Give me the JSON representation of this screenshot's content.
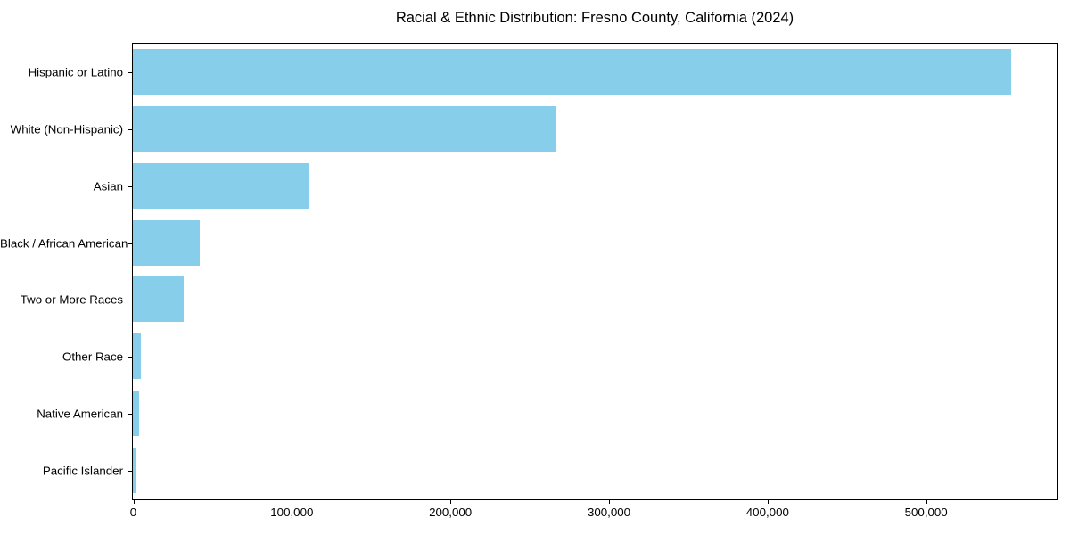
{
  "chart_data": {
    "type": "bar",
    "orientation": "horizontal",
    "title": "Racial & Ethnic Distribution: Fresno County, California (2024)",
    "categories": [
      "Hispanic or Latino",
      "White (Non-Hispanic)",
      "Asian",
      "Black / African American",
      "Two or More Races",
      "Other Race",
      "Native American",
      "Pacific Islander"
    ],
    "values": [
      554000,
      267000,
      111000,
      42000,
      32000,
      5000,
      4000,
      2000
    ],
    "xlabel": "",
    "ylabel": "",
    "xlim": [
      0,
      582000
    ],
    "x_ticks": [
      0,
      100000,
      200000,
      300000,
      400000,
      500000
    ],
    "x_tick_labels": [
      "0",
      "100,000",
      "200,000",
      "300,000",
      "400,000",
      "500,000"
    ],
    "bar_color": "#87CEEB",
    "axis_color": "#000000",
    "background_color": "#ffffff",
    "grid": false,
    "legend": null
  }
}
